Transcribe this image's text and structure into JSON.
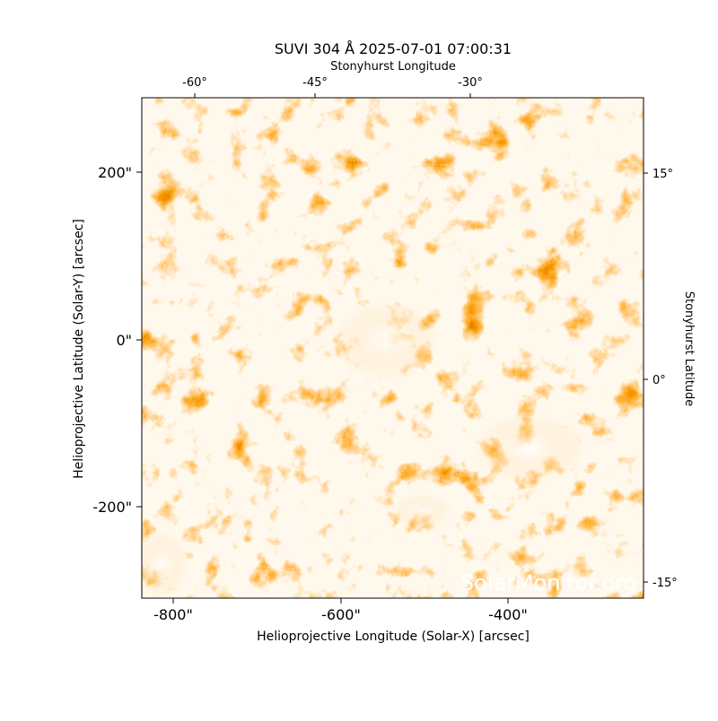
{
  "title": "SUVI 304 Å 2025-07-01 07:00:31",
  "top_axis": {
    "label": "Stonyhurst Longitude",
    "ticks": [
      "-60°",
      "-45°",
      "-30°"
    ]
  },
  "bottom_axis": {
    "label": "Helioprojective Longitude (Solar-X) [arcsec]",
    "ticks": [
      "-800\"",
      "-600\"",
      "-400\""
    ]
  },
  "left_axis": {
    "label": "Helioprojective Latitude (Solar-Y) [arcsec]",
    "ticks": [
      "200\"",
      "0\"",
      "-200\""
    ]
  },
  "right_axis": {
    "label": "Stonyhurst Latitude",
    "ticks": [
      "15°",
      "0°",
      "-15°"
    ]
  },
  "watermark": "SolarMonitor.org"
}
